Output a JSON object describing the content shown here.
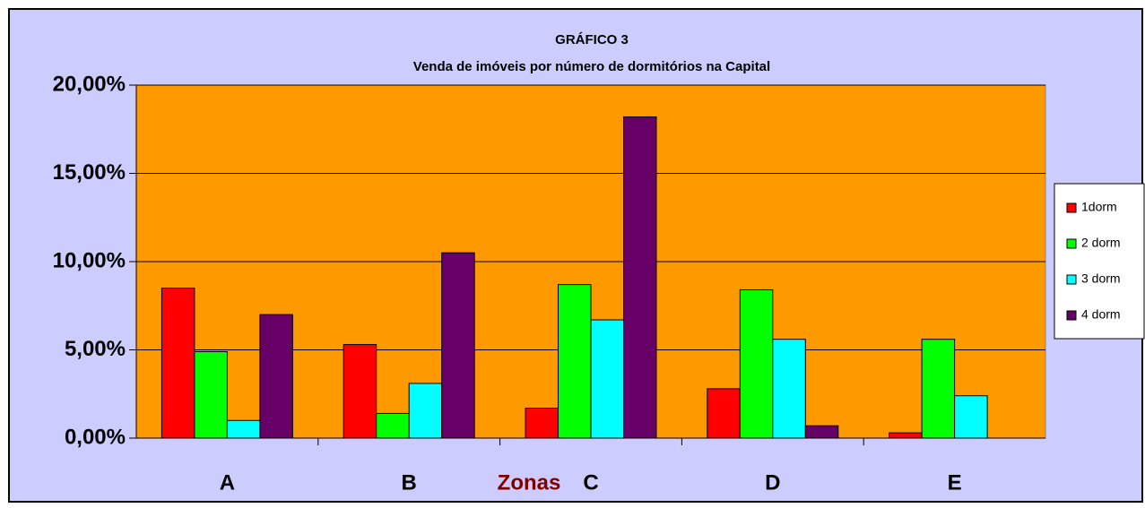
{
  "chart_data": {
    "type": "bar",
    "title": "GRÁFICO 3",
    "subtitle": "Venda de imóveis por número de dormitórios na Capital",
    "x_label": "Zonas",
    "categories": [
      "A",
      "B",
      "C",
      "D",
      "E"
    ],
    "series": [
      {
        "name": "1dorm",
        "color": "#ff0000",
        "values": [
          8.5,
          5.3,
          1.7,
          2.8,
          0.3
        ]
      },
      {
        "name": "2 dorm",
        "color": "#00ff00",
        "values": [
          4.9,
          1.4,
          8.7,
          8.4,
          5.6
        ]
      },
      {
        "name": "3 dorm",
        "color": "#00ffff",
        "values": [
          1.0,
          3.1,
          6.7,
          5.6,
          2.4
        ]
      },
      {
        "name": "4 dorm",
        "color": "#660066",
        "values": [
          7.0,
          10.5,
          18.2,
          0.7,
          null
        ]
      }
    ],
    "ylim": [
      0,
      20
    ],
    "yticks": [
      {
        "value": 0,
        "label": "0,00%"
      },
      {
        "value": 5,
        "label": "5,00%"
      },
      {
        "value": 10,
        "label": "10,00%"
      },
      {
        "value": 15,
        "label": "15,00%"
      },
      {
        "value": 20,
        "label": "20,00%"
      }
    ],
    "grid": true,
    "legend": "right"
  }
}
